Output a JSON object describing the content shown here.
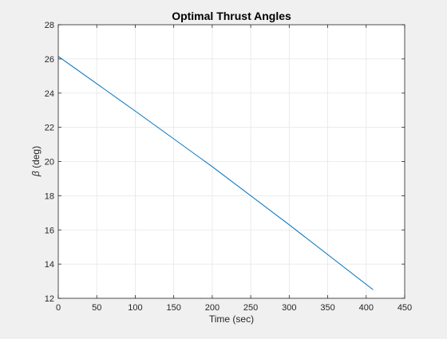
{
  "chart_data": {
    "type": "line",
    "title": "Optimal Thrust Angles",
    "xlabel": "Time (sec)",
    "ylabel_symbol": "β",
    "ylabel_text": " (deg)",
    "xlim": [
      0,
      450
    ],
    "ylim": [
      12,
      28
    ],
    "xticks": [
      0,
      50,
      100,
      150,
      200,
      250,
      300,
      350,
      400,
      450
    ],
    "yticks": [
      12,
      14,
      16,
      18,
      20,
      22,
      24,
      26,
      28
    ],
    "grid": true,
    "legend": "none",
    "series": [
      {
        "color": "#0072bd",
        "x": [
          0,
          100,
          200,
          300,
          409
        ],
        "y": [
          26.15,
          22.95,
          19.7,
          16.3,
          12.5
        ]
      }
    ]
  },
  "colors": {
    "figure_background": "#f0f0f0",
    "axes_background": "#ffffff",
    "grid": "#e6e6e6",
    "axis": "#262626",
    "line": "#0072bd"
  }
}
